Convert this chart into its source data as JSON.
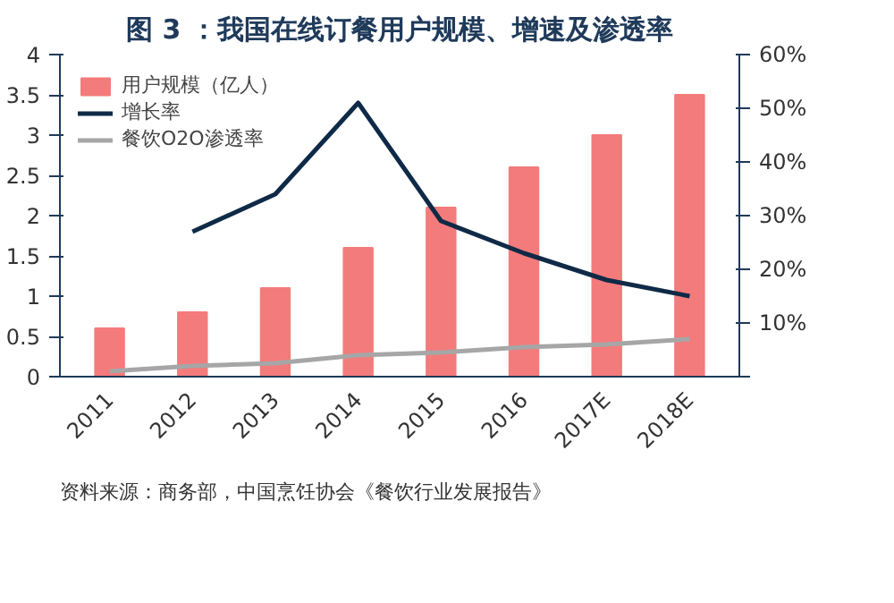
{
  "chart_data": {
    "type": "bar",
    "title": "图 3 ：我国在线订餐用户规模、增速及渗透率",
    "categories": [
      "2011",
      "2012",
      "2013",
      "2014",
      "2015",
      "2016",
      "2017E",
      "2018E"
    ],
    "series": [
      {
        "name": "用户规模（亿人）",
        "color": "#f47b7b",
        "values": [
          0.6,
          0.8,
          1.1,
          1.6,
          2.1,
          2.6,
          3.0,
          3.5
        ]
      },
      {
        "name": "增长率",
        "type": "line",
        "axis": "y2",
        "color": "#0f2a47",
        "values": [
          null,
          27,
          34,
          51,
          29,
          23,
          18,
          15
        ]
      },
      {
        "name": "餐饮O2O渗透率",
        "type": "line",
        "axis": "y2",
        "color": "#a6a6a6",
        "values": [
          1,
          2,
          2.5,
          4,
          4.5,
          5.5,
          6,
          7
        ]
      }
    ],
    "ylim": [
      0,
      4
    ],
    "yticks": [
      0,
      0.5,
      1,
      1.5,
      2,
      2.5,
      3,
      3.5,
      4
    ],
    "y2lim": [
      0,
      60
    ],
    "y2ticks": [
      {
        "value": 0,
        "label": null
      },
      {
        "value": 10,
        "label": "10%"
      },
      {
        "value": 20,
        "label": "20%"
      },
      {
        "value": 30,
        "label": "30%"
      },
      {
        "value": 40,
        "label": "40%"
      },
      {
        "value": 50,
        "label": "50%"
      },
      {
        "value": 60,
        "label": "60%"
      }
    ],
    "legend": "top left",
    "grid": false,
    "annotations": [
      "资料来源：商务部，中国烹饪协会《餐饮行业发展报告》"
    ]
  }
}
